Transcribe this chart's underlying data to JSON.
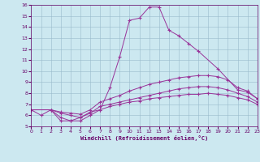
{
  "xlabel": "Windchill (Refroidissement éolien,°C)",
  "bg_color": "#cce8f0",
  "line_color": "#993399",
  "xlim": [
    0,
    23
  ],
  "ylim": [
    5,
    16
  ],
  "xticks": [
    0,
    1,
    2,
    3,
    4,
    5,
    6,
    7,
    8,
    9,
    10,
    11,
    12,
    13,
    14,
    15,
    16,
    17,
    18,
    19,
    20,
    21,
    22,
    23
  ],
  "yticks": [
    5,
    6,
    7,
    8,
    9,
    10,
    11,
    12,
    13,
    14,
    15,
    16
  ],
  "line1_x": [
    0,
    1,
    2,
    3,
    4,
    5,
    6,
    7,
    8,
    9,
    10,
    11,
    12,
    13,
    14,
    15,
    16,
    17,
    19,
    21,
    22,
    23
  ],
  "line1_y": [
    6.5,
    6.0,
    6.5,
    5.5,
    5.5,
    5.8,
    6.3,
    6.5,
    8.5,
    11.3,
    14.6,
    14.8,
    15.8,
    15.8,
    13.7,
    13.2,
    12.5,
    11.8,
    10.2,
    8.3,
    8.1,
    7.5
  ],
  "line2_x": [
    0,
    2,
    3,
    4,
    5,
    6,
    7,
    8,
    9,
    10,
    11,
    12,
    13,
    14,
    15,
    16,
    17,
    18,
    19,
    20,
    21,
    22,
    23
  ],
  "line2_y": [
    6.5,
    6.5,
    6.3,
    6.2,
    6.1,
    6.5,
    7.2,
    7.5,
    7.8,
    8.2,
    8.5,
    8.8,
    9.0,
    9.2,
    9.4,
    9.5,
    9.6,
    9.6,
    9.5,
    9.2,
    8.5,
    8.2,
    7.5
  ],
  "line3_x": [
    0,
    2,
    3,
    4,
    5,
    6,
    7,
    8,
    9,
    10,
    11,
    12,
    13,
    14,
    15,
    16,
    17,
    18,
    19,
    20,
    21,
    22,
    23
  ],
  "line3_y": [
    6.5,
    6.5,
    6.2,
    6.0,
    5.8,
    6.2,
    6.8,
    7.0,
    7.2,
    7.4,
    7.6,
    7.8,
    8.0,
    8.2,
    8.4,
    8.5,
    8.6,
    8.6,
    8.5,
    8.3,
    8.0,
    7.7,
    7.2
  ],
  "line4_x": [
    0,
    2,
    3,
    4,
    5,
    6,
    7,
    8,
    9,
    10,
    11,
    12,
    13,
    14,
    15,
    16,
    17,
    18,
    19,
    20,
    21,
    22,
    23
  ],
  "line4_y": [
    6.5,
    6.5,
    5.8,
    5.5,
    5.5,
    6.0,
    6.5,
    6.8,
    7.0,
    7.2,
    7.3,
    7.5,
    7.6,
    7.7,
    7.8,
    7.9,
    7.9,
    8.0,
    7.9,
    7.8,
    7.6,
    7.4,
    7.0
  ]
}
